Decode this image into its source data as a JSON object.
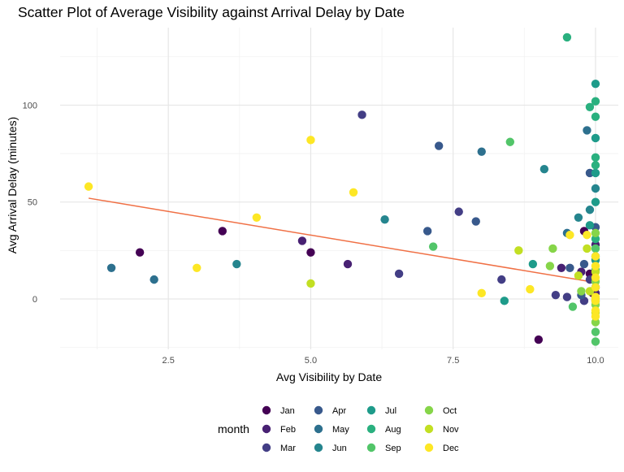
{
  "chart_data": {
    "type": "scatter",
    "title": "Scatter Plot of Average Visibility against Arrival Delay by Date",
    "xlabel": "Avg Visibility by Date",
    "ylabel": "Avg Arrival Delay (minutes)",
    "xlim": [
      0.6,
      10.4
    ],
    "ylim": [
      -26,
      140
    ],
    "xticks": [
      2.5,
      5.0,
      7.5,
      10.0
    ],
    "xtick_labels": [
      "2.5",
      "5.0",
      "7.5",
      "10.0"
    ],
    "yticks": [
      0,
      50,
      100
    ],
    "ytick_labels": [
      "0",
      "50",
      "100"
    ],
    "grid": true,
    "legend": {
      "title": "month",
      "placement": "bottom",
      "entries": [
        "Jan",
        "Feb",
        "Mar",
        "Apr",
        "May",
        "Jun",
        "Jul",
        "Aug",
        "Sep",
        "Oct",
        "Nov",
        "Dec"
      ]
    },
    "colors": {
      "Jan": "#440154",
      "Feb": "#482173",
      "Mar": "#433e85",
      "Apr": "#38598c",
      "May": "#2d708e",
      "Jun": "#25858e",
      "Jul": "#1e9b8a",
      "Aug": "#2ab07f",
      "Sep": "#52c569",
      "Oct": "#86d549",
      "Nov": "#c2df23",
      "Dec": "#fde725",
      "trend": "#f07045"
    },
    "trendline": {
      "x": [
        1.1,
        10.0
      ],
      "y": [
        52,
        8.5
      ]
    },
    "series": [
      {
        "name": "Jan",
        "points": [
          [
            2.0,
            24
          ],
          [
            3.45,
            35
          ],
          [
            5.0,
            24
          ],
          [
            9.0,
            -21
          ],
          [
            9.8,
            35
          ],
          [
            9.9,
            13
          ],
          [
            9.95,
            3
          ],
          [
            10.0,
            6
          ]
        ]
      },
      {
        "name": "Feb",
        "points": [
          [
            4.85,
            30
          ],
          [
            5.65,
            18
          ],
          [
            9.4,
            16
          ],
          [
            9.75,
            14
          ],
          [
            10.0,
            28
          ],
          [
            10.0,
            3
          ],
          [
            10.0,
            -1
          ]
        ]
      },
      {
        "name": "Mar",
        "points": [
          [
            5.9,
            95
          ],
          [
            6.55,
            13
          ],
          [
            7.6,
            45
          ],
          [
            8.35,
            10
          ],
          [
            9.3,
            2
          ],
          [
            9.5,
            1
          ],
          [
            9.8,
            -1
          ],
          [
            9.9,
            10
          ]
        ]
      },
      {
        "name": "Apr",
        "points": [
          [
            7.25,
            79
          ],
          [
            7.05,
            35
          ],
          [
            7.9,
            40
          ],
          [
            9.55,
            16
          ],
          [
            9.75,
            2
          ],
          [
            9.9,
            65
          ],
          [
            10.0,
            37
          ],
          [
            9.8,
            18
          ]
        ]
      },
      {
        "name": "May",
        "points": [
          [
            1.5,
            16
          ],
          [
            2.25,
            10
          ],
          [
            8.0,
            76
          ],
          [
            9.5,
            34
          ],
          [
            9.85,
            87
          ],
          [
            10.0,
            22
          ]
        ]
      },
      {
        "name": "Jun",
        "points": [
          [
            3.7,
            18
          ],
          [
            6.3,
            41
          ],
          [
            9.1,
            67
          ],
          [
            9.7,
            42
          ],
          [
            9.9,
            46
          ],
          [
            10.0,
            57
          ]
        ]
      },
      {
        "name": "Jul",
        "points": [
          [
            8.4,
            -1
          ],
          [
            8.9,
            18
          ],
          [
            10.0,
            111
          ],
          [
            10.0,
            83
          ],
          [
            10.0,
            65
          ],
          [
            10.0,
            50
          ],
          [
            9.9,
            38
          ],
          [
            10.0,
            20
          ]
        ]
      },
      {
        "name": "Aug",
        "points": [
          [
            9.5,
            135
          ],
          [
            9.9,
            99
          ],
          [
            10.0,
            102
          ],
          [
            10.0,
            94
          ],
          [
            10.0,
            73
          ],
          [
            10.0,
            69
          ],
          [
            10.0,
            31
          ],
          [
            10.0,
            15
          ]
        ]
      },
      {
        "name": "Sep",
        "points": [
          [
            7.15,
            27
          ],
          [
            8.5,
            81
          ],
          [
            9.6,
            -4
          ],
          [
            10.0,
            -22
          ],
          [
            10.0,
            -17
          ],
          [
            10.0,
            26
          ]
        ]
      },
      {
        "name": "Oct",
        "points": [
          [
            9.25,
            26
          ],
          [
            9.2,
            17
          ],
          [
            9.75,
            4
          ],
          [
            10.0,
            -3
          ],
          [
            10.0,
            9
          ],
          [
            10.0,
            34
          ],
          [
            10.0,
            -12
          ]
        ]
      },
      {
        "name": "Nov",
        "points": [
          [
            5.0,
            8
          ],
          [
            8.65,
            25
          ],
          [
            9.7,
            12
          ],
          [
            9.85,
            26
          ],
          [
            9.9,
            4
          ],
          [
            10.0,
            0
          ],
          [
            10.0,
            -7
          ],
          [
            10.0,
            14
          ]
        ]
      },
      {
        "name": "Dec",
        "points": [
          [
            1.1,
            58
          ],
          [
            3.0,
            16
          ],
          [
            4.05,
            42
          ],
          [
            5.0,
            82
          ],
          [
            5.75,
            55
          ],
          [
            8.0,
            3
          ],
          [
            8.85,
            5
          ],
          [
            9.55,
            33
          ],
          [
            9.85,
            33
          ],
          [
            10.0,
            22
          ],
          [
            10.0,
            11
          ],
          [
            10.0,
            6
          ],
          [
            10.0,
            1
          ],
          [
            10.0,
            -1
          ],
          [
            10.0,
            -6
          ],
          [
            10.0,
            -9
          ],
          [
            10.0,
            17
          ]
        ]
      }
    ]
  }
}
